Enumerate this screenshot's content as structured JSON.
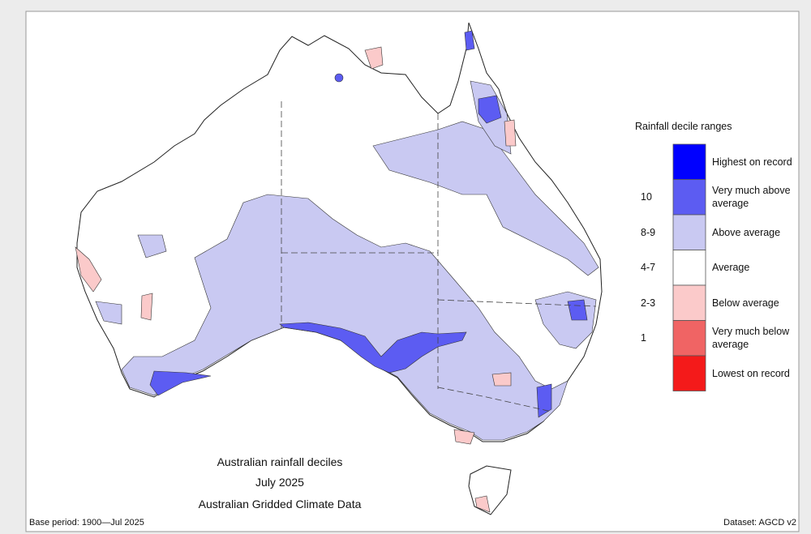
{
  "map": {
    "title": "Australian rainfall deciles",
    "period": "July 2025",
    "source": "Australian Gridded Climate Data",
    "base_period": "Base period: 1900—Jul 2025",
    "dataset": "Dataset: AGCD v2",
    "legend": {
      "title": "Rainfall decile ranges",
      "items": [
        {
          "label": "Highest on record",
          "color": "#0000ff"
        },
        {
          "range": "10",
          "label": "Very much above average",
          "color": "#5c5cf2"
        },
        {
          "range": "8-9",
          "label": "Above average",
          "color": "#c9c9f2"
        },
        {
          "range": "4-7",
          "label": "Average",
          "color": "#ffffff"
        },
        {
          "range": "2-3",
          "label": "Below average",
          "color": "#fbcaca"
        },
        {
          "range": "1",
          "label": "Very much below average",
          "color": "#f06464"
        },
        {
          "label": "Lowest on record",
          "color": "#f41a1a"
        }
      ]
    }
  }
}
